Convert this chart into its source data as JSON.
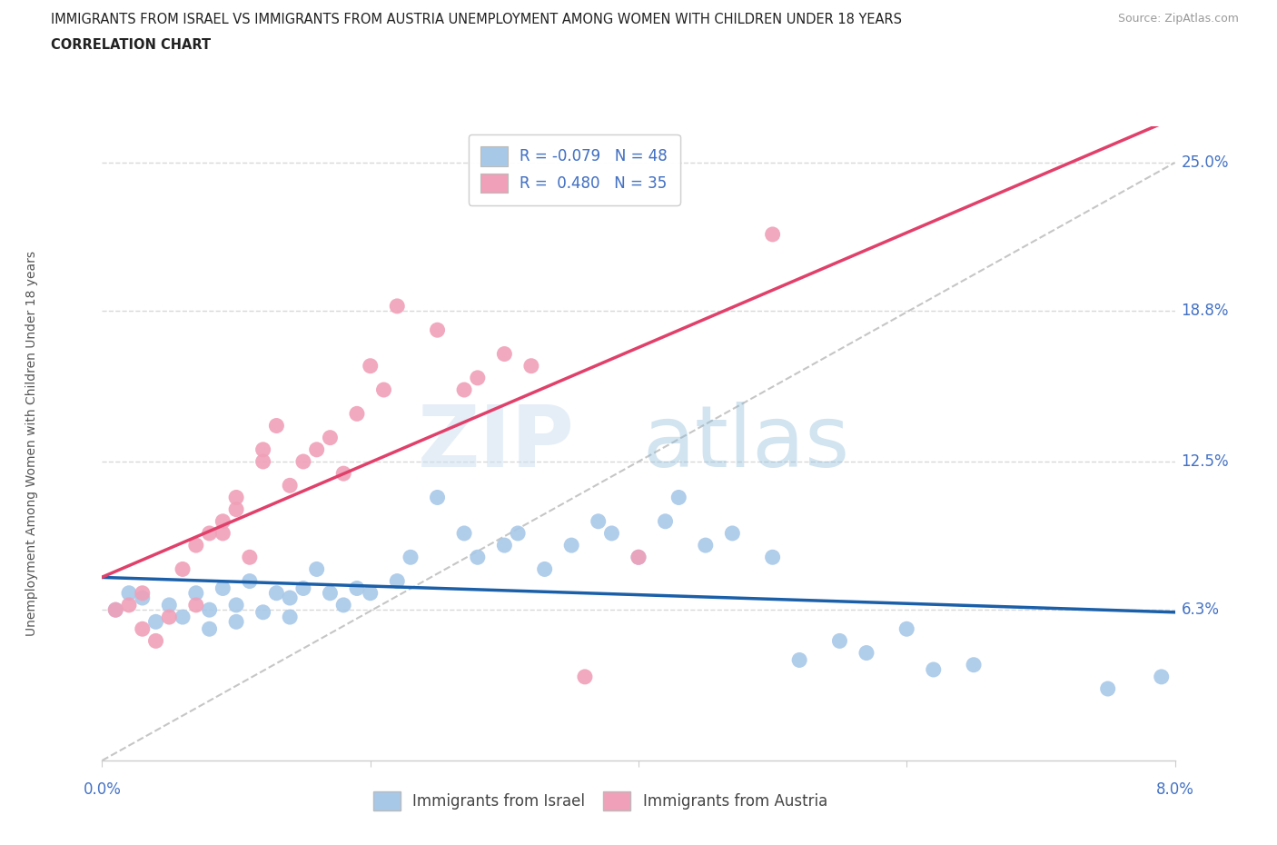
{
  "title_line1": "IMMIGRANTS FROM ISRAEL VS IMMIGRANTS FROM AUSTRIA UNEMPLOYMENT AMONG WOMEN WITH CHILDREN UNDER 18 YEARS",
  "title_line2": "CORRELATION CHART",
  "source_text": "Source: ZipAtlas.com",
  "ylabel": "Unemployment Among Women with Children Under 18 years",
  "xlim": [
    0.0,
    0.08
  ],
  "ylim": [
    0.0,
    0.265
  ],
  "ytick_labels_right": [
    "6.3%",
    "12.5%",
    "18.8%",
    "25.0%"
  ],
  "ytick_values_right": [
    0.063,
    0.125,
    0.188,
    0.25
  ],
  "israel_color": "#a8c8e8",
  "austria_color": "#f0a0b8",
  "israel_line_color": "#1a5fa8",
  "austria_line_color": "#e0406a",
  "diagonal_color": "#c0c0c0",
  "R_israel": -0.079,
  "N_israel": 48,
  "R_austria": 0.48,
  "N_austria": 35,
  "legend_label_israel": "Immigrants from Israel",
  "legend_label_austria": "Immigrants from Austria",
  "grid_color": "#d8d8d8",
  "bg_color": "#ffffff",
  "title_color": "#222222",
  "axis_label_color": "#4472c4",
  "israel_x": [
    0.001,
    0.002,
    0.003,
    0.004,
    0.005,
    0.006,
    0.007,
    0.008,
    0.008,
    0.009,
    0.01,
    0.01,
    0.011,
    0.012,
    0.013,
    0.014,
    0.014,
    0.015,
    0.016,
    0.017,
    0.018,
    0.019,
    0.02,
    0.022,
    0.023,
    0.025,
    0.027,
    0.028,
    0.03,
    0.031,
    0.033,
    0.035,
    0.037,
    0.038,
    0.04,
    0.042,
    0.043,
    0.045,
    0.047,
    0.05,
    0.052,
    0.055,
    0.057,
    0.06,
    0.062,
    0.065,
    0.075,
    0.079
  ],
  "israel_y": [
    0.063,
    0.07,
    0.068,
    0.058,
    0.065,
    0.06,
    0.07,
    0.063,
    0.055,
    0.072,
    0.065,
    0.058,
    0.075,
    0.062,
    0.07,
    0.068,
    0.06,
    0.072,
    0.08,
    0.07,
    0.065,
    0.072,
    0.07,
    0.075,
    0.085,
    0.11,
    0.095,
    0.085,
    0.09,
    0.095,
    0.08,
    0.09,
    0.1,
    0.095,
    0.085,
    0.1,
    0.11,
    0.09,
    0.095,
    0.085,
    0.042,
    0.05,
    0.045,
    0.055,
    0.038,
    0.04,
    0.03,
    0.035
  ],
  "austria_x": [
    0.001,
    0.002,
    0.003,
    0.003,
    0.004,
    0.005,
    0.006,
    0.007,
    0.007,
    0.008,
    0.009,
    0.009,
    0.01,
    0.01,
    0.011,
    0.012,
    0.012,
    0.013,
    0.014,
    0.015,
    0.016,
    0.017,
    0.018,
    0.019,
    0.02,
    0.021,
    0.022,
    0.025,
    0.027,
    0.028,
    0.03,
    0.032,
    0.036,
    0.04,
    0.05
  ],
  "austria_y": [
    0.063,
    0.065,
    0.055,
    0.07,
    0.05,
    0.06,
    0.08,
    0.065,
    0.09,
    0.095,
    0.1,
    0.095,
    0.105,
    0.11,
    0.085,
    0.125,
    0.13,
    0.14,
    0.115,
    0.125,
    0.13,
    0.135,
    0.12,
    0.145,
    0.165,
    0.155,
    0.19,
    0.18,
    0.155,
    0.16,
    0.17,
    0.165,
    0.035,
    0.085,
    0.22
  ]
}
